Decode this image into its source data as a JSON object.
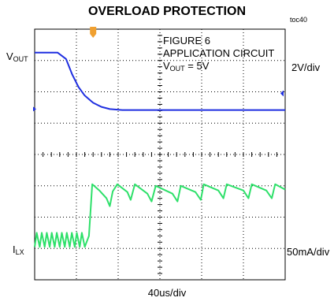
{
  "chart_data": {
    "type": "line",
    "title": "OVERLOAD PROTECTION",
    "figure_id": "toc40",
    "xlabel": "40us/div",
    "x_divisions": 6,
    "y_divisions": 8,
    "grid": true,
    "annotation": {
      "line1": "FIGURE 6",
      "line2": "APPLICATION CIRCUIT",
      "line3_prefix": "V",
      "line3_sub": "OUT",
      "line3_suffix": " = 5V"
    },
    "channels": [
      {
        "label_main": "V",
        "label_sub": "OUT",
        "scale": "2V/div",
        "color": "#1f2fe0",
        "points_div": [
          [
            0,
            7.25
          ],
          [
            0.55,
            7.25
          ],
          [
            0.75,
            7.05
          ],
          [
            0.9,
            6.55
          ],
          [
            1.05,
            6.15
          ],
          [
            1.2,
            5.88
          ],
          [
            1.4,
            5.65
          ],
          [
            1.6,
            5.52
          ],
          [
            1.8,
            5.45
          ],
          [
            2.1,
            5.42
          ],
          [
            6,
            5.42
          ]
        ]
      },
      {
        "label_main": "I",
        "label_sub": "LX",
        "scale": "50mA/div",
        "color": "#2ee06a",
        "points_div": [
          [
            0,
            1.05
          ],
          [
            0.05,
            1.5
          ],
          [
            0.12,
            1.05
          ],
          [
            0.17,
            1.5
          ],
          [
            0.24,
            1.05
          ],
          [
            0.29,
            1.5
          ],
          [
            0.36,
            1.05
          ],
          [
            0.41,
            1.5
          ],
          [
            0.48,
            1.05
          ],
          [
            0.53,
            1.5
          ],
          [
            0.6,
            1.05
          ],
          [
            0.65,
            1.5
          ],
          [
            0.72,
            1.05
          ],
          [
            0.77,
            1.5
          ],
          [
            0.84,
            1.05
          ],
          [
            0.89,
            1.5
          ],
          [
            0.96,
            1.05
          ],
          [
            1.01,
            1.5
          ],
          [
            1.08,
            1.05
          ],
          [
            1.13,
            1.5
          ],
          [
            1.2,
            1.05
          ],
          [
            1.3,
            1.4
          ],
          [
            1.38,
            3.05
          ],
          [
            1.55,
            2.85
          ],
          [
            1.72,
            2.6
          ],
          [
            1.8,
            2.35
          ],
          [
            1.87,
            2.82
          ],
          [
            1.98,
            3.05
          ],
          [
            2.22,
            2.8
          ],
          [
            2.3,
            2.55
          ],
          [
            2.4,
            3.05
          ],
          [
            2.7,
            2.75
          ],
          [
            2.8,
            2.5
          ],
          [
            2.9,
            3.0
          ],
          [
            3.3,
            2.75
          ],
          [
            3.42,
            2.5
          ],
          [
            3.5,
            3.0
          ],
          [
            3.85,
            2.8
          ],
          [
            3.98,
            2.55
          ],
          [
            4.05,
            3.05
          ],
          [
            4.4,
            2.85
          ],
          [
            4.52,
            2.6
          ],
          [
            4.6,
            3.05
          ],
          [
            5.0,
            2.85
          ],
          [
            5.12,
            2.6
          ],
          [
            5.2,
            3.05
          ],
          [
            5.55,
            2.85
          ],
          [
            5.68,
            2.6
          ],
          [
            5.76,
            3.05
          ],
          [
            6,
            2.88
          ]
        ]
      }
    ],
    "markers": {
      "trigger_color": "#f0a030",
      "level_color": "#1f2fe0"
    }
  }
}
